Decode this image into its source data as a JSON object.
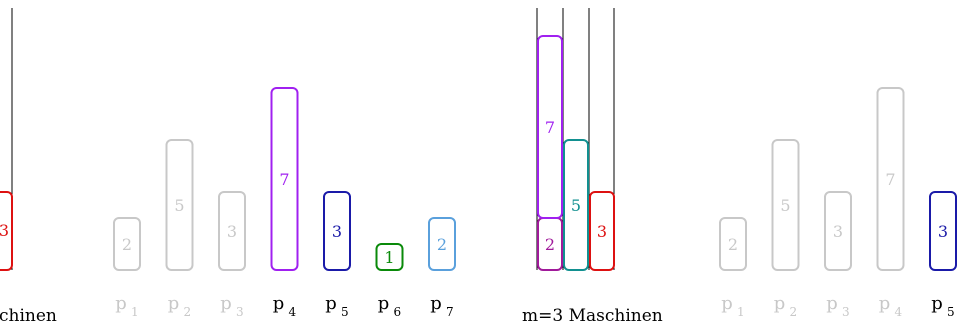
{
  "colors": {
    "grey": "#c8c8c8",
    "purple": "#a020f0",
    "blue": "#1a1aa8",
    "green": "#0a8a0a",
    "lightblue": "#5aa0dc",
    "red": "#dd1111",
    "teal": "#129090",
    "magenta": "#a01a9a",
    "black": "#000000"
  },
  "left_panel": {
    "caption": "chinen",
    "job_value": "3",
    "job_color": "red"
  },
  "jobs_panel_1": {
    "jobs": [
      {
        "label": "p",
        "sub": "1",
        "value": "2",
        "color": "grey",
        "label_muted": true
      },
      {
        "label": "p",
        "sub": "2",
        "value": "5",
        "color": "grey",
        "label_muted": true
      },
      {
        "label": "p",
        "sub": "3",
        "value": "3",
        "color": "grey",
        "label_muted": true
      },
      {
        "label": "p",
        "sub": "4",
        "value": "7",
        "color": "purple",
        "label_muted": false
      },
      {
        "label": "p",
        "sub": "5",
        "value": "3",
        "color": "blue",
        "label_muted": false
      },
      {
        "label": "p",
        "sub": "6",
        "value": "1",
        "color": "green",
        "label_muted": false
      },
      {
        "label": "p",
        "sub": "7",
        "value": "2",
        "color": "lightblue",
        "label_muted": false
      }
    ]
  },
  "machines_panel": {
    "caption": "m=3 Maschinen",
    "jobs": [
      {
        "value": "2",
        "color": "magenta",
        "machine": 1
      },
      {
        "value": "7",
        "color": "purple",
        "machine": 1
      },
      {
        "value": "5",
        "color": "teal",
        "machine": 2
      },
      {
        "value": "3",
        "color": "red",
        "machine": 3
      }
    ]
  },
  "jobs_panel_2": {
    "jobs": [
      {
        "label": "p",
        "sub": "1",
        "value": "2",
        "color": "grey",
        "label_muted": true
      },
      {
        "label": "p",
        "sub": "2",
        "value": "5",
        "color": "grey",
        "label_muted": true
      },
      {
        "label": "p",
        "sub": "3",
        "value": "3",
        "color": "grey",
        "label_muted": true
      },
      {
        "label": "p",
        "sub": "4",
        "value": "7",
        "color": "grey",
        "label_muted": true
      },
      {
        "label": "p",
        "sub": "5",
        "value": "3",
        "color": "blue",
        "label_muted": false
      }
    ]
  }
}
